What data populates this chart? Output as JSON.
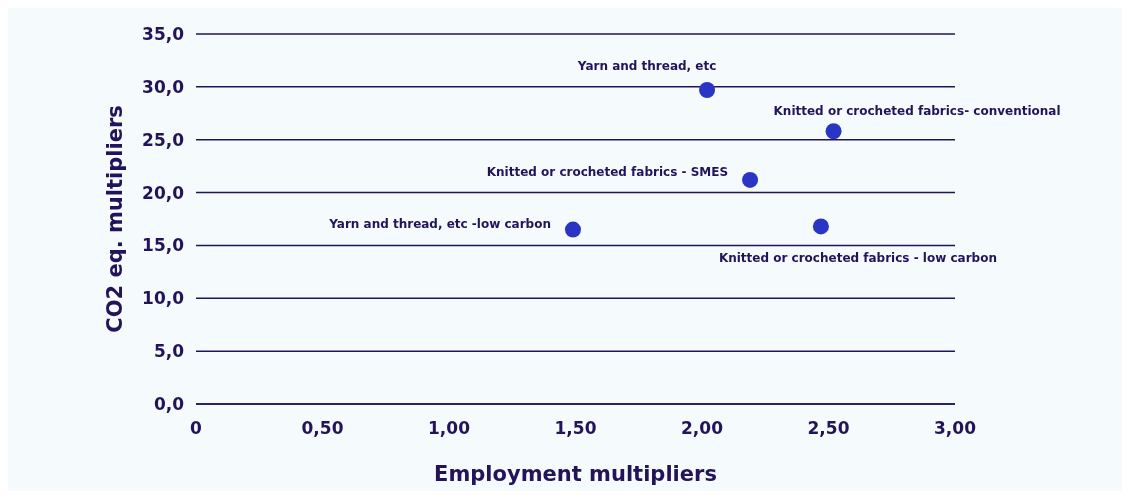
{
  "chart_data": {
    "type": "scatter",
    "xlabel": "Employment multipliers",
    "ylabel": "CO2 eq. multipliers",
    "x": [
      2.02,
      2.52,
      2.19,
      1.49,
      2.47
    ],
    "series": [
      {
        "color": "#2b35c4",
        "values": [
          29.7,
          25.8,
          21.2,
          16.5,
          16.8
        ]
      }
    ],
    "marker": "circle",
    "grid": "y",
    "xlim": [
      0,
      3
    ],
    "xticks": [
      0,
      {
        "value": 0.5,
        "label": "0,50"
      },
      {
        "value": 1,
        "label": "1,00"
      },
      {
        "value": 1.5,
        "label": "1,50"
      },
      {
        "value": 2,
        "label": "2,00"
      },
      {
        "value": 2.5,
        "label": "2,50"
      },
      {
        "value": 3,
        "label": "3,00"
      }
    ],
    "ylim": [
      0,
      35
    ],
    "yticks": [
      {
        "value": 0,
        "label": "0,0"
      },
      {
        "value": 5,
        "label": "5,0"
      },
      {
        "value": 10,
        "label": "10,0"
      },
      {
        "value": 15,
        "label": "15,0"
      },
      {
        "value": 20,
        "label": "20,0"
      },
      {
        "value": 25,
        "label": "25,0"
      },
      {
        "value": 30,
        "label": "30,0"
      },
      {
        "value": 35,
        "label": "35,0"
      }
    ],
    "annotations": [
      {
        "text": "Yarn and thread, etc",
        "x": 2.02,
        "y": 29.7
      },
      {
        "text": "Knitted or crocheted fabrics- conventional",
        "x": 2.52,
        "y": 25.8
      },
      {
        "text": "Knitted or crocheted fabrics - SMES",
        "x": 2.19,
        "y": 21.2
      },
      {
        "text": "Yarn and thread, etc -low carbon",
        "x": 1.49,
        "y": 16.5
      },
      {
        "text": "Knitted or crocheted fabrics - low carbon",
        "x": 2.47,
        "y": 16.8
      }
    ]
  }
}
